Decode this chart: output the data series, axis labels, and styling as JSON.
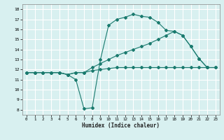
{
  "xlabel": "Humidex (Indice chaleur)",
  "bg_color": "#d8f0f0",
  "grid_color": "#ffffff",
  "line_color": "#1a7a6e",
  "xlim": [
    -0.5,
    23.5
  ],
  "ylim": [
    7.5,
    18.5
  ],
  "xticks": [
    0,
    1,
    2,
    3,
    4,
    5,
    6,
    7,
    8,
    9,
    10,
    11,
    12,
    13,
    14,
    15,
    16,
    17,
    18,
    19,
    20,
    21,
    22,
    23
  ],
  "yticks": [
    8,
    9,
    10,
    11,
    12,
    13,
    14,
    15,
    16,
    17,
    18
  ],
  "line1_x": [
    0,
    1,
    2,
    3,
    4,
    5,
    6,
    7,
    8,
    9,
    10,
    11,
    12,
    13,
    14,
    15,
    16,
    17,
    18,
    19,
    20,
    21,
    22
  ],
  "line1_y": [
    11.7,
    11.7,
    11.7,
    11.7,
    11.7,
    11.5,
    11.0,
    8.1,
    8.2,
    13.0,
    16.4,
    17.0,
    17.2,
    17.5,
    17.3,
    17.2,
    16.7,
    15.9,
    15.8,
    15.4,
    14.3,
    13.1,
    12.2
  ],
  "line2_x": [
    0,
    1,
    2,
    3,
    4,
    5,
    6,
    7,
    8,
    9,
    10,
    11,
    12,
    13,
    14,
    15,
    16,
    17,
    18,
    19,
    20,
    21,
    22,
    23
  ],
  "line2_y": [
    11.7,
    11.7,
    11.7,
    11.7,
    11.7,
    11.5,
    11.7,
    11.7,
    12.2,
    12.6,
    13.0,
    13.4,
    13.7,
    14.0,
    14.3,
    14.6,
    15.0,
    15.4,
    15.8,
    15.4,
    14.3,
    13.1,
    12.2,
    12.2
  ],
  "line3_x": [
    0,
    1,
    2,
    3,
    4,
    5,
    6,
    7,
    8,
    9,
    10,
    11,
    12,
    13,
    14,
    15,
    16,
    17,
    18,
    19,
    20,
    21,
    22,
    23
  ],
  "line3_y": [
    11.7,
    11.7,
    11.7,
    11.7,
    11.7,
    11.5,
    11.7,
    11.7,
    11.9,
    12.0,
    12.1,
    12.2,
    12.2,
    12.2,
    12.2,
    12.2,
    12.2,
    12.2,
    12.2,
    12.2,
    12.2,
    12.2,
    12.2,
    12.2
  ]
}
